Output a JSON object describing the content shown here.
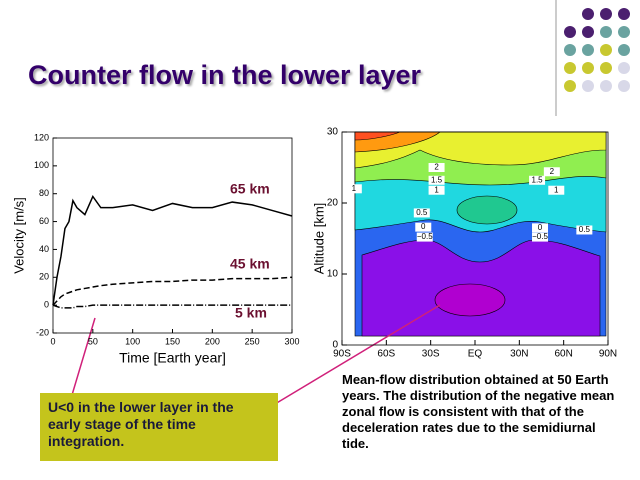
{
  "title": "Counter flow in the lower layer",
  "callout": "U<0 in the lower layer in the early stage of the time integration.",
  "caption": "Mean-flow distribution obtained at 50 Earth years. The distribution of the negative mean zonal flow is consistent with that of the deceleration rates due to the semidiurnal tide.",
  "chart_data": [
    {
      "type": "line",
      "xlabel": "Time [Earth year]",
      "ylabel": "Velocity [m/s]",
      "x": [
        0,
        5,
        10,
        15,
        20,
        25,
        30,
        40,
        50,
        60,
        75,
        100,
        125,
        150,
        175,
        200,
        225,
        250,
        275,
        300
      ],
      "series": [
        {
          "name": "65 km",
          "color": "#000000",
          "dash": "none",
          "values": [
            0,
            20,
            35,
            55,
            60,
            75,
            70,
            65,
            78,
            70,
            70,
            72,
            68,
            73,
            70,
            70,
            74,
            72,
            68,
            64
          ]
        },
        {
          "name": "45 km",
          "color": "#000000",
          "dash": "6 3",
          "values": [
            0,
            3,
            6,
            8,
            9,
            10,
            11,
            12,
            13,
            14,
            15,
            16,
            17,
            17,
            18,
            18,
            19,
            19,
            19,
            20
          ]
        },
        {
          "name": "5 km",
          "color": "#000000",
          "dash": "7 2 1 2",
          "values": [
            0,
            -1,
            -2,
            -2,
            -2,
            -2,
            -1,
            -1,
            0,
            0,
            0,
            0,
            0,
            0,
            0,
            0,
            0,
            0,
            0,
            0
          ]
        }
      ],
      "xlim": [
        0,
        300
      ],
      "xticks": [
        0,
        50,
        100,
        150,
        200,
        250,
        300
      ],
      "ylim": [
        -20,
        120
      ],
      "yticks": [
        -20,
        0,
        20,
        40,
        60,
        80,
        100,
        120
      ]
    },
    {
      "type": "contour",
      "ylabel": "Altitude [km]",
      "xlim": [
        -90,
        90
      ],
      "xticks": [
        {
          "value": -90,
          "label": "90S"
        },
        {
          "value": -60,
          "label": "60S"
        },
        {
          "value": -30,
          "label": "30S"
        },
        {
          "value": 0,
          "label": "EQ"
        },
        {
          "value": 30,
          "label": "30N"
        },
        {
          "value": 60,
          "label": "60N"
        },
        {
          "value": 90,
          "label": "90N"
        }
      ],
      "ylim": [
        0,
        30
      ],
      "yticks": [
        0,
        10,
        20,
        30
      ],
      "annotations": [
        {
          "label": "2",
          "x": -26,
          "y": 25
        },
        {
          "label": "1.5",
          "x": -26,
          "y": 23.2
        },
        {
          "label": "1",
          "x": -26,
          "y": 21.8
        },
        {
          "label": "1",
          "x": -82,
          "y": 22
        },
        {
          "label": "0.5",
          "x": -36,
          "y": 18.6
        },
        {
          "label": "0",
          "x": -35,
          "y": 16.6
        },
        {
          "label": "−0.5",
          "x": -34,
          "y": 15.2
        },
        {
          "label": "2",
          "x": 52,
          "y": 24.4
        },
        {
          "label": "1.5",
          "x": 42,
          "y": 23.2
        },
        {
          "label": "1",
          "x": 55,
          "y": 21.8
        },
        {
          "label": "0",
          "x": 44,
          "y": 16.5
        },
        {
          "label": "−0.5",
          "x": 44,
          "y": 15.2
        },
        {
          "label": "0.5",
          "x": 74,
          "y": 16.2
        }
      ]
    }
  ]
}
